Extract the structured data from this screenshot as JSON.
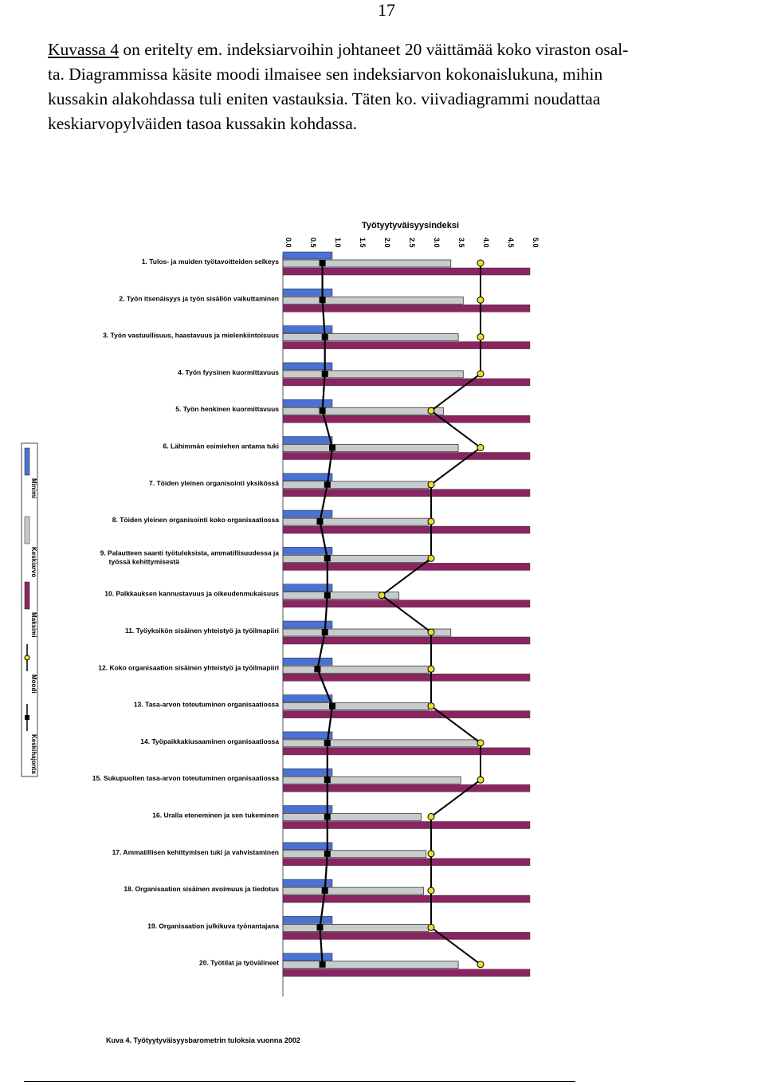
{
  "page_number": "17",
  "paragraph": {
    "link_text": "Kuvassa 4",
    "line1_rest": " on eritelty em. indeksiarvoihin johtaneet 20 väittämää koko viraston osal-",
    "line2": "ta. Diagrammissa käsite moodi ilmaisee sen indeksiarvon kokonaislukuna, mihin",
    "line3": "kussakin alakohdassa tuli eniten vastauksia. Täten ko. viivadiagrammi noudattaa",
    "line4": "keskiarvopylväiden tasoa kussakin kohdassa."
  },
  "chart_data": {
    "type": "bar",
    "orientation": "horizontal",
    "title": "Työtyytyväisyysindeksi",
    "xlim": [
      0.0,
      5.0
    ],
    "x_ticks": [
      "0.0",
      "0.5",
      "1.0",
      "1.5",
      "2.0",
      "2.5",
      "3.0",
      "3.5",
      "4.0",
      "4.5",
      "5.0"
    ],
    "grid": false,
    "legend_position": "left, vertical",
    "caption": "Kuva 4. Työtyytyväisyysbarometrin tuloksia vuonna 2002",
    "categories": [
      "1. Tulos- ja muiden työtavoitteiden selkeys",
      "2. Työn itsenäisyys ja työn sisällön vaikuttaminen",
      "3. Työn vastuullisuus, haastavuus ja mielenkiintoisuus",
      "4. Työn fyysinen kuormittavuus",
      "5. Työn henkinen kuormittavuus",
      "6. Lähimmän esimiehen antama tuki",
      "7. Töiden yleinen organisointi yksikössä",
      "8. Töiden yleinen organisointi koko organisaatiossa",
      "9. Palautteen saanti työtuloksista, ammatillisuudessa ja työssä kehittymisestä",
      "10. Palkkauksen kannustavuus ja oikeudenmukaisuus",
      "11. Työyksikön sisäinen yhteistyö ja työilmapiiri",
      "12. Koko organisaation sisäinen yhteistyö ja työilmapiiri",
      "13. Tasa-arvon toteutuminen organisaatiossa",
      "14. Työpaikkakiusaaminen organisaatiossa",
      "15. Sukupuolten tasa-arvon toteutuminen organisaatiossa",
      "16. Uralla eteneminen ja sen tukeminen",
      "17. Ammatillisen kehittymisen tuki ja vahvistaminen",
      "18. Organisaation sisäinen avoimuus ja tiedotus",
      "19. Organisaation julkikuva työnantajana",
      "20. Työtilat ja työvälineet"
    ],
    "series": [
      {
        "name": "Minimi",
        "color": "#4a72d4",
        "values": [
          1.0,
          1.0,
          1.0,
          1.0,
          1.0,
          1.0,
          1.0,
          1.0,
          1.0,
          1.0,
          1.0,
          1.0,
          1.0,
          1.0,
          1.0,
          1.0,
          1.0,
          1.0,
          1.0,
          1.0
        ]
      },
      {
        "name": "Keskiarvo",
        "color": "#c8cace",
        "values": [
          3.4,
          3.65,
          3.55,
          3.65,
          3.25,
          3.55,
          2.95,
          2.95,
          2.95,
          2.35,
          3.4,
          2.95,
          2.95,
          3.95,
          3.6,
          2.8,
          2.9,
          2.85,
          2.95,
          3.55
        ]
      },
      {
        "name": "Maksimi",
        "color": "#8b2462",
        "values": [
          5.0,
          5.0,
          5.0,
          5.0,
          5.0,
          5.0,
          5.0,
          5.0,
          5.0,
          5.0,
          5.0,
          5.0,
          5.0,
          5.0,
          5.0,
          5.0,
          5.0,
          5.0,
          5.0,
          5.0
        ]
      },
      {
        "name": "Moodi",
        "color": "#f0e020",
        "marker": "circle",
        "values": [
          4.0,
          4.0,
          4.0,
          4.0,
          3.0,
          4.0,
          3.0,
          3.0,
          3.0,
          2.0,
          3.0,
          3.0,
          3.0,
          4.0,
          4.0,
          3.0,
          3.0,
          3.0,
          3.0,
          4.0
        ]
      },
      {
        "name": "Keskihajonta",
        "color": "#000000",
        "marker": "square",
        "values": [
          0.8,
          0.8,
          0.85,
          0.85,
          0.8,
          1.0,
          0.9,
          0.75,
          0.9,
          0.9,
          0.85,
          0.7,
          1.0,
          0.9,
          0.9,
          0.9,
          0.9,
          0.85,
          0.75,
          0.8
        ]
      }
    ]
  }
}
